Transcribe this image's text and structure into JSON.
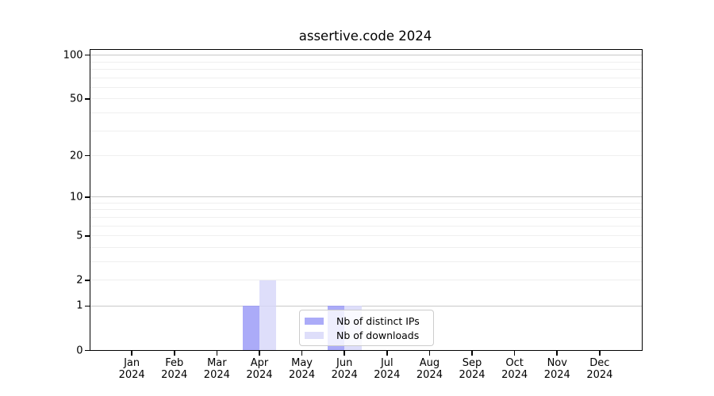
{
  "chart_data": {
    "type": "bar",
    "title": "assertive.code 2024",
    "categories": [
      "Jan 2024",
      "Feb 2024",
      "Mar 2024",
      "Apr 2024",
      "May 2024",
      "Jun 2024",
      "Jul 2024",
      "Aug 2024",
      "Sep 2024",
      "Oct 2024",
      "Nov 2024",
      "Dec 2024"
    ],
    "series": [
      {
        "name": "Nb of distinct IPs",
        "color": "#9999f7",
        "values": [
          0,
          0,
          0,
          1,
          0,
          1,
          0,
          0,
          0,
          0,
          0,
          0
        ]
      },
      {
        "name": "Nb of downloads",
        "color": "#d7d7f9",
        "values": [
          0,
          0,
          0,
          2,
          0,
          1,
          0,
          0,
          0,
          0,
          0,
          0
        ]
      }
    ],
    "bar_alpha": 0.82,
    "xlabel": "",
    "ylabel": "",
    "y_axis": {
      "scale": "log1p",
      "tick_values": [
        0,
        1,
        2,
        5,
        10,
        20,
        50,
        100
      ],
      "tick_labels": [
        "0",
        "1",
        "2",
        "5",
        "10",
        "20",
        "50",
        "100"
      ],
      "major_gridlines": [
        1,
        10,
        100
      ],
      "minor_gridlines": [
        2,
        3,
        4,
        5,
        6,
        7,
        8,
        9,
        20,
        30,
        40,
        50,
        60,
        70,
        80,
        90
      ],
      "ylim": [
        0,
        110
      ]
    },
    "legend": {
      "position": "lower center"
    },
    "grid": true,
    "colors": {
      "background": "#ffffff",
      "spine": "#000000",
      "gridline_major": "#c8c8c8",
      "gridline_minor": "#efefef",
      "tick_text": "#000000",
      "legend_border": "#cccccc",
      "legend_bg": "rgba(255,255,255,0.8)"
    }
  }
}
